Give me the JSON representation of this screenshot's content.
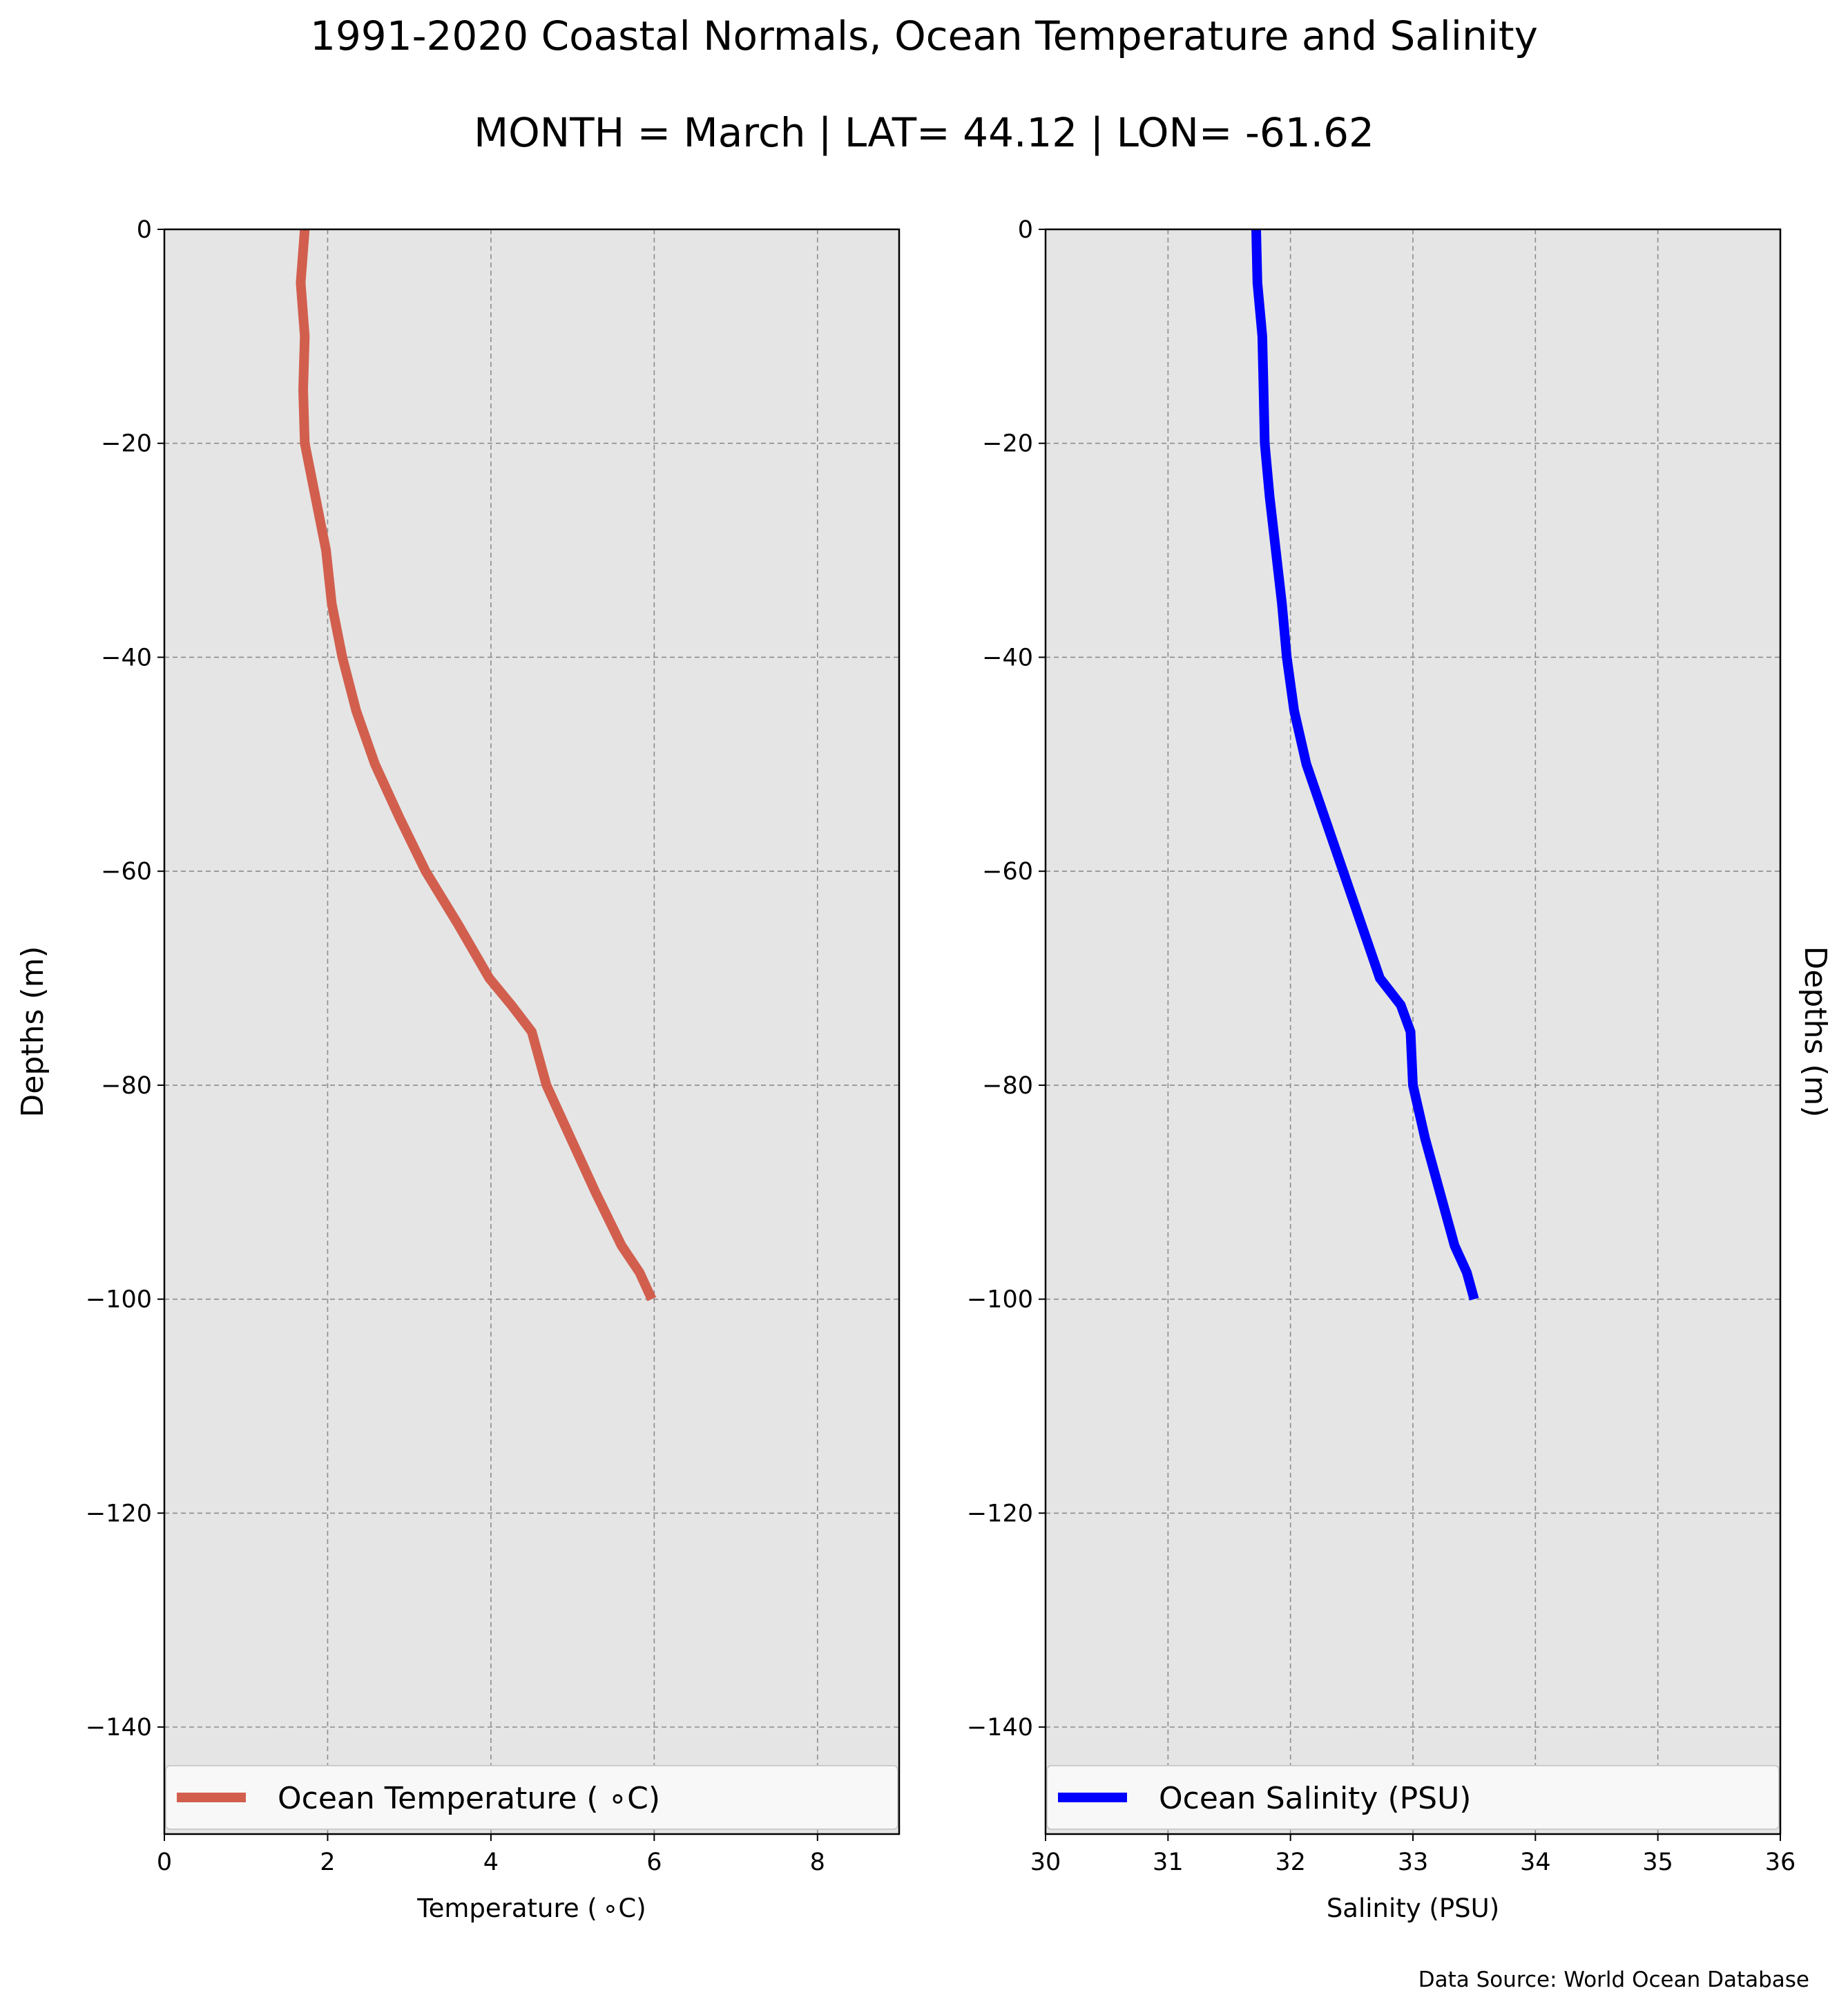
{
  "figure": {
    "title_line1": "1991-2020 Coastal Normals, Ocean Temperature and Salinity",
    "title_line2": "MONTH = March | LAT= 44.12 | LON= -61.62",
    "source_note": "Data Source: World Ocean Database"
  },
  "colors": {
    "temperature_line": "#d25f4e",
    "salinity_line": "#0000ff",
    "axes_background": "#e5e5e5",
    "grid": "#8c8c8c"
  },
  "chart_data": [
    {
      "type": "line",
      "xlabel": "Temperature ($^\\circ$C)",
      "xlabel_display": "Temperature ( ∘C)",
      "ylabel": "Depths (m)",
      "xlim": [
        0,
        9
      ],
      "ylim": [
        -150,
        0
      ],
      "xticks": [
        0,
        2,
        4,
        6,
        8
      ],
      "yticks": [
        0,
        -20,
        -40,
        -60,
        -80,
        -100,
        -120,
        -140
      ],
      "ytick_labels": [
        "0",
        "−20",
        "−40",
        "−60",
        "−80",
        "−100",
        "−120",
        "−140"
      ],
      "grid": true,
      "legend": "lower center",
      "series": [
        {
          "name": "Ocean Temperature ( ∘C)",
          "color": "#d25f4e",
          "x": [
            1.72,
            1.67,
            1.72,
            1.7,
            1.72,
            1.85,
            1.98,
            2.05,
            2.18,
            2.35,
            2.58,
            2.88,
            3.2,
            3.6,
            3.98,
            4.25,
            4.5,
            4.68,
            4.98,
            5.28,
            5.6,
            5.82,
            5.97
          ],
          "y": [
            0,
            -5,
            -10,
            -15,
            -20,
            -25,
            -30,
            -35,
            -40,
            -45,
            -50,
            -55,
            -60,
            -65,
            -70,
            -72.5,
            -75,
            -80,
            -85,
            -90,
            -95,
            -97.5,
            -100
          ]
        }
      ]
    },
    {
      "type": "line",
      "xlabel": "Salinity (PSU)",
      "ylabel": "Depths (m)",
      "xlim": [
        30,
        36
      ],
      "ylim": [
        -150,
        0
      ],
      "xticks": [
        30,
        31,
        32,
        33,
        34,
        35,
        36
      ],
      "yticks": [
        0,
        -20,
        -40,
        -60,
        -80,
        -100,
        -120,
        -140
      ],
      "ytick_labels": [
        "0",
        "−20",
        "−40",
        "−60",
        "−80",
        "−100",
        "−120",
        "−140"
      ],
      "grid": true,
      "legend": "lower center",
      "series": [
        {
          "name": "Ocean Salinity (PSU)",
          "color": "#0000ff",
          "x": [
            31.72,
            31.73,
            31.77,
            31.78,
            31.79,
            31.83,
            31.88,
            31.93,
            31.97,
            32.03,
            32.13,
            32.28,
            32.43,
            32.58,
            32.73,
            32.9,
            32.98,
            33.0,
            33.1,
            33.22,
            33.34,
            33.44,
            33.5
          ],
          "y": [
            0,
            -5,
            -10,
            -15,
            -20,
            -25,
            -30,
            -35,
            -40,
            -45,
            -50,
            -55,
            -60,
            -65,
            -70,
            -72.5,
            -75,
            -80,
            -85,
            -90,
            -95,
            -97.5,
            -100
          ]
        }
      ]
    }
  ]
}
